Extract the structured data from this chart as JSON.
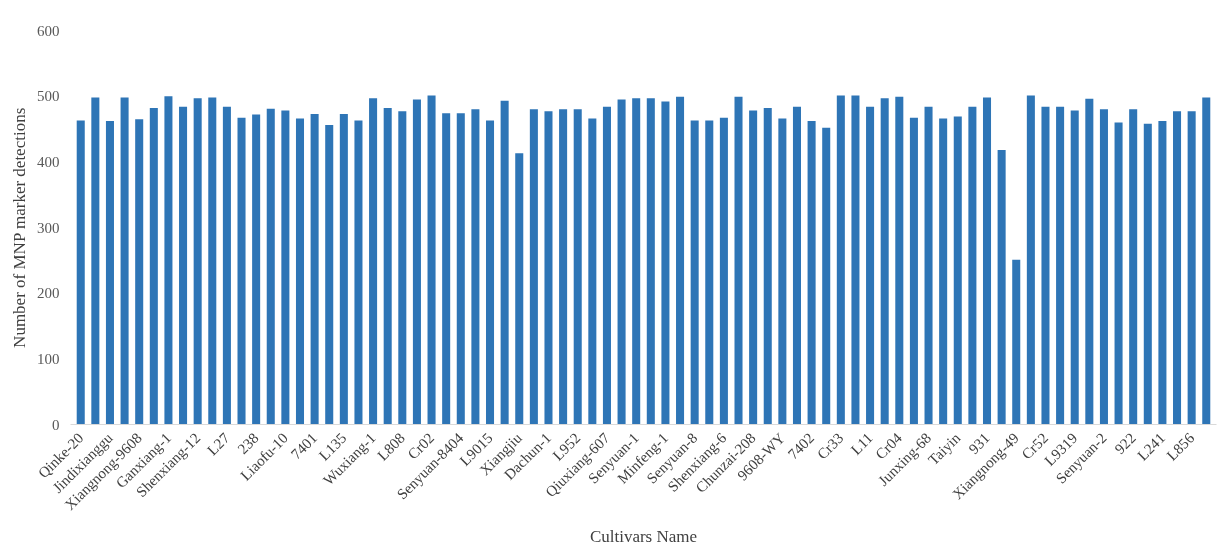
{
  "chart_data": {
    "type": "bar",
    "xlabel": "Cultivars Name",
    "ylabel": "Number of MNP marker detections",
    "categories": [
      "Qinke-20",
      null,
      "Jindixianggu",
      null,
      "Xiangnong-9608",
      null,
      "Ganxiang-1",
      null,
      "Shenxiang-12",
      null,
      "L27",
      null,
      "238",
      null,
      "Liaofu-10",
      null,
      "7401",
      null,
      "L135",
      null,
      "Wuxiang-1",
      null,
      "L808",
      null,
      "Cr02",
      null,
      "Senyuan-8404",
      null,
      "L9015",
      null,
      "Xiangjiu",
      null,
      "Dachun-1",
      null,
      "L952",
      null,
      "Qiuxiang-607",
      null,
      "Senyuan-1",
      null,
      "Minfeng-1",
      null,
      "Senyuan-8",
      null,
      "Shenxiang-6",
      null,
      "Chunzai-208",
      null,
      "9608-WY",
      null,
      "7402",
      null,
      "Cr33",
      null,
      "L11",
      null,
      "Cr04",
      null,
      "Junxing-68",
      null,
      "Taiyin",
      null,
      "931",
      null,
      "Xiangnong-49",
      null,
      "Cr52",
      null,
      "L9319",
      null,
      "Senyuan-2",
      null,
      "922",
      null,
      "L241",
      null,
      "L856",
      null
    ],
    "values": [
      463,
      498,
      462,
      498,
      465,
      482,
      500,
      484,
      497,
      498,
      484,
      467,
      472,
      481,
      478,
      466,
      473,
      456,
      473,
      463,
      497,
      482,
      477,
      495,
      501,
      474,
      474,
      480,
      463,
      493,
      413,
      480,
      477,
      480,
      480,
      466,
      484,
      495,
      497,
      497,
      492,
      499,
      463,
      463,
      467,
      499,
      478,
      482,
      466,
      484,
      462,
      452,
      501,
      501,
      484,
      497,
      499,
      467,
      484,
      466,
      469,
      484,
      498,
      418,
      251,
      501,
      484,
      484,
      478,
      496,
      480,
      460,
      480,
      458,
      462,
      477,
      477,
      498
    ],
    "color": "#2e75b6",
    "ylim": [
      0,
      600
    ],
    "yticks": [
      0,
      100,
      200,
      300,
      400,
      500,
      600
    ],
    "grid": false
  }
}
